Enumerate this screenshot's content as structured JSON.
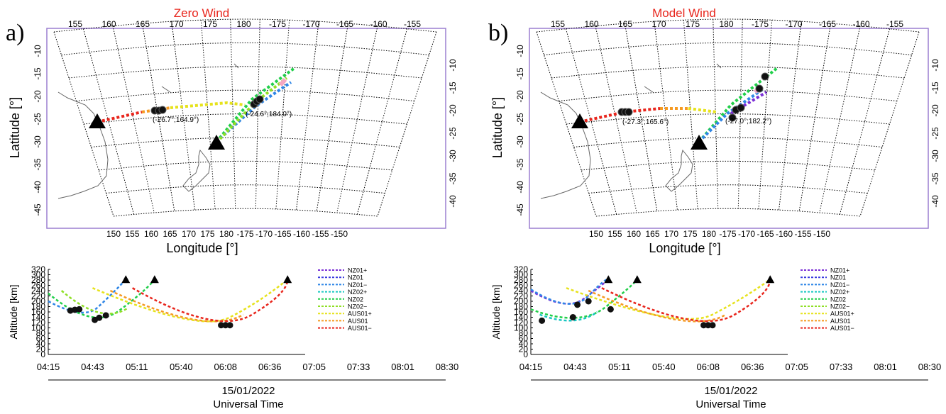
{
  "panels": [
    {
      "panel_label": "a)",
      "map_title": "Zero Wind",
      "time_axis_date": "15/01/2022",
      "time_axis_label": "Universal Time",
      "longitude_label": "Longitude [°]",
      "latitude_label": "Latitude [°]",
      "altitude_label": "Altitude [km]",
      "annotations": [
        {
          "text": "(-26.7°;164.9°)"
        },
        {
          "text": "(-24.6°;184.0°)"
        }
      ]
    },
    {
      "panel_label": "b)",
      "map_title": "Model Wind",
      "time_axis_date": "15/01/2022",
      "time_axis_label": "Universal Time",
      "longitude_label": "Longitude [°]",
      "latitude_label": "Latitude [°]",
      "altitude_label": "Altitude [km]",
      "annotations": [
        {
          "text": "(-27.3°;165.6°)"
        },
        {
          "text": "(-27.0°;182.2°)"
        }
      ]
    }
  ],
  "chart_data": [
    {
      "type": "map",
      "panel": "a",
      "title": "Zero Wind",
      "top_lon_ticks": [
        "155",
        "160",
        "165",
        "170",
        "175",
        "180",
        "-175",
        "-170",
        "-165",
        "-160",
        "-155"
      ],
      "bottom_lon_ticks": [
        "150",
        "155",
        "160",
        "165",
        "170",
        "175",
        "180",
        "-175",
        "-170",
        "-165",
        "-160",
        "-155",
        "-150"
      ],
      "left_lat_ticks": [
        "-10",
        "-15",
        "-20",
        "-25",
        "-30",
        "-35",
        "-40",
        "-45"
      ],
      "right_lat_ticks": [
        "-10",
        "-15",
        "-20",
        "-25",
        "-30",
        "-35",
        "-40"
      ],
      "xlabel": "Longitude [°]",
      "ylabel": "Latitude [°]"
    },
    {
      "type": "line",
      "panel": "a",
      "title": "",
      "ylabel": "Altitude [km]",
      "xlabel": "Universal Time",
      "date": "15/01/2022",
      "ylim": [
        0,
        320
      ],
      "y_ticks": [
        "0",
        "20",
        "40",
        "60",
        "80",
        "100",
        "120",
        "140",
        "160",
        "180",
        "200",
        "220",
        "240",
        "260",
        "280",
        "300",
        "320"
      ],
      "x_ticks": [
        "04:15",
        "04:43",
        "05:11",
        "05:40",
        "06:08",
        "06:36",
        "07:05",
        "07:33",
        "08:01",
        "08:30"
      ],
      "legend": [
        {
          "name": "NZ01+",
          "color": "#7b2fd6"
        },
        {
          "name": "NZ01",
          "color": "#3a3adf"
        },
        {
          "name": "NZ01−",
          "color": "#2f86e6"
        },
        {
          "name": "NZ02+",
          "color": "#19c7c2"
        },
        {
          "name": "NZ02",
          "color": "#21cf4a"
        },
        {
          "name": "NZ02−",
          "color": "#8fdf26"
        },
        {
          "name": "AUS01+",
          "color": "#e6e21c"
        },
        {
          "name": "AUS01",
          "color": "#f59a22"
        },
        {
          "name": "AUS01−",
          "color": "#e8251c"
        }
      ]
    },
    {
      "type": "map",
      "panel": "b",
      "title": "Model Wind",
      "top_lon_ticks": [
        "155",
        "160",
        "165",
        "170",
        "175",
        "180",
        "-175",
        "-170",
        "-165",
        "-160",
        "-155"
      ],
      "bottom_lon_ticks": [
        "150",
        "155",
        "160",
        "165",
        "170",
        "175",
        "180",
        "-175",
        "-170",
        "-165",
        "-160",
        "-155",
        "-150"
      ],
      "left_lat_ticks": [
        "-10",
        "-15",
        "-20",
        "-25",
        "-30",
        "-35",
        "-40",
        "-45"
      ],
      "right_lat_ticks": [
        "-10",
        "-15",
        "-20",
        "-25",
        "-30",
        "-35",
        "-40"
      ],
      "xlabel": "Longitude [°]",
      "ylabel": "Latitude [°]"
    },
    {
      "type": "line",
      "panel": "b",
      "title": "",
      "ylabel": "Altitude [km]",
      "xlabel": "Universal Time",
      "date": "15/01/2022",
      "ylim": [
        0,
        320
      ],
      "y_ticks": [
        "0",
        "20",
        "40",
        "60",
        "80",
        "100",
        "120",
        "140",
        "160",
        "180",
        "200",
        "220",
        "240",
        "260",
        "280",
        "300",
        "320"
      ],
      "x_ticks": [
        "04:15",
        "04:43",
        "05:11",
        "05:40",
        "06:08",
        "06:36",
        "07:05",
        "07:33",
        "08:01",
        "08:30"
      ],
      "legend": [
        {
          "name": "NZ01+",
          "color": "#7b2fd6"
        },
        {
          "name": "NZ01",
          "color": "#3a3adf"
        },
        {
          "name": "NZ01−",
          "color": "#2f86e6"
        },
        {
          "name": "NZ02+",
          "color": "#19c7c2"
        },
        {
          "name": "NZ02",
          "color": "#21cf4a"
        },
        {
          "name": "NZ02−",
          "color": "#8fdf26"
        },
        {
          "name": "AUS01+",
          "color": "#e6e21c"
        },
        {
          "name": "AUS01",
          "color": "#f59a22"
        },
        {
          "name": "AUS01−",
          "color": "#e8251c"
        }
      ]
    }
  ]
}
